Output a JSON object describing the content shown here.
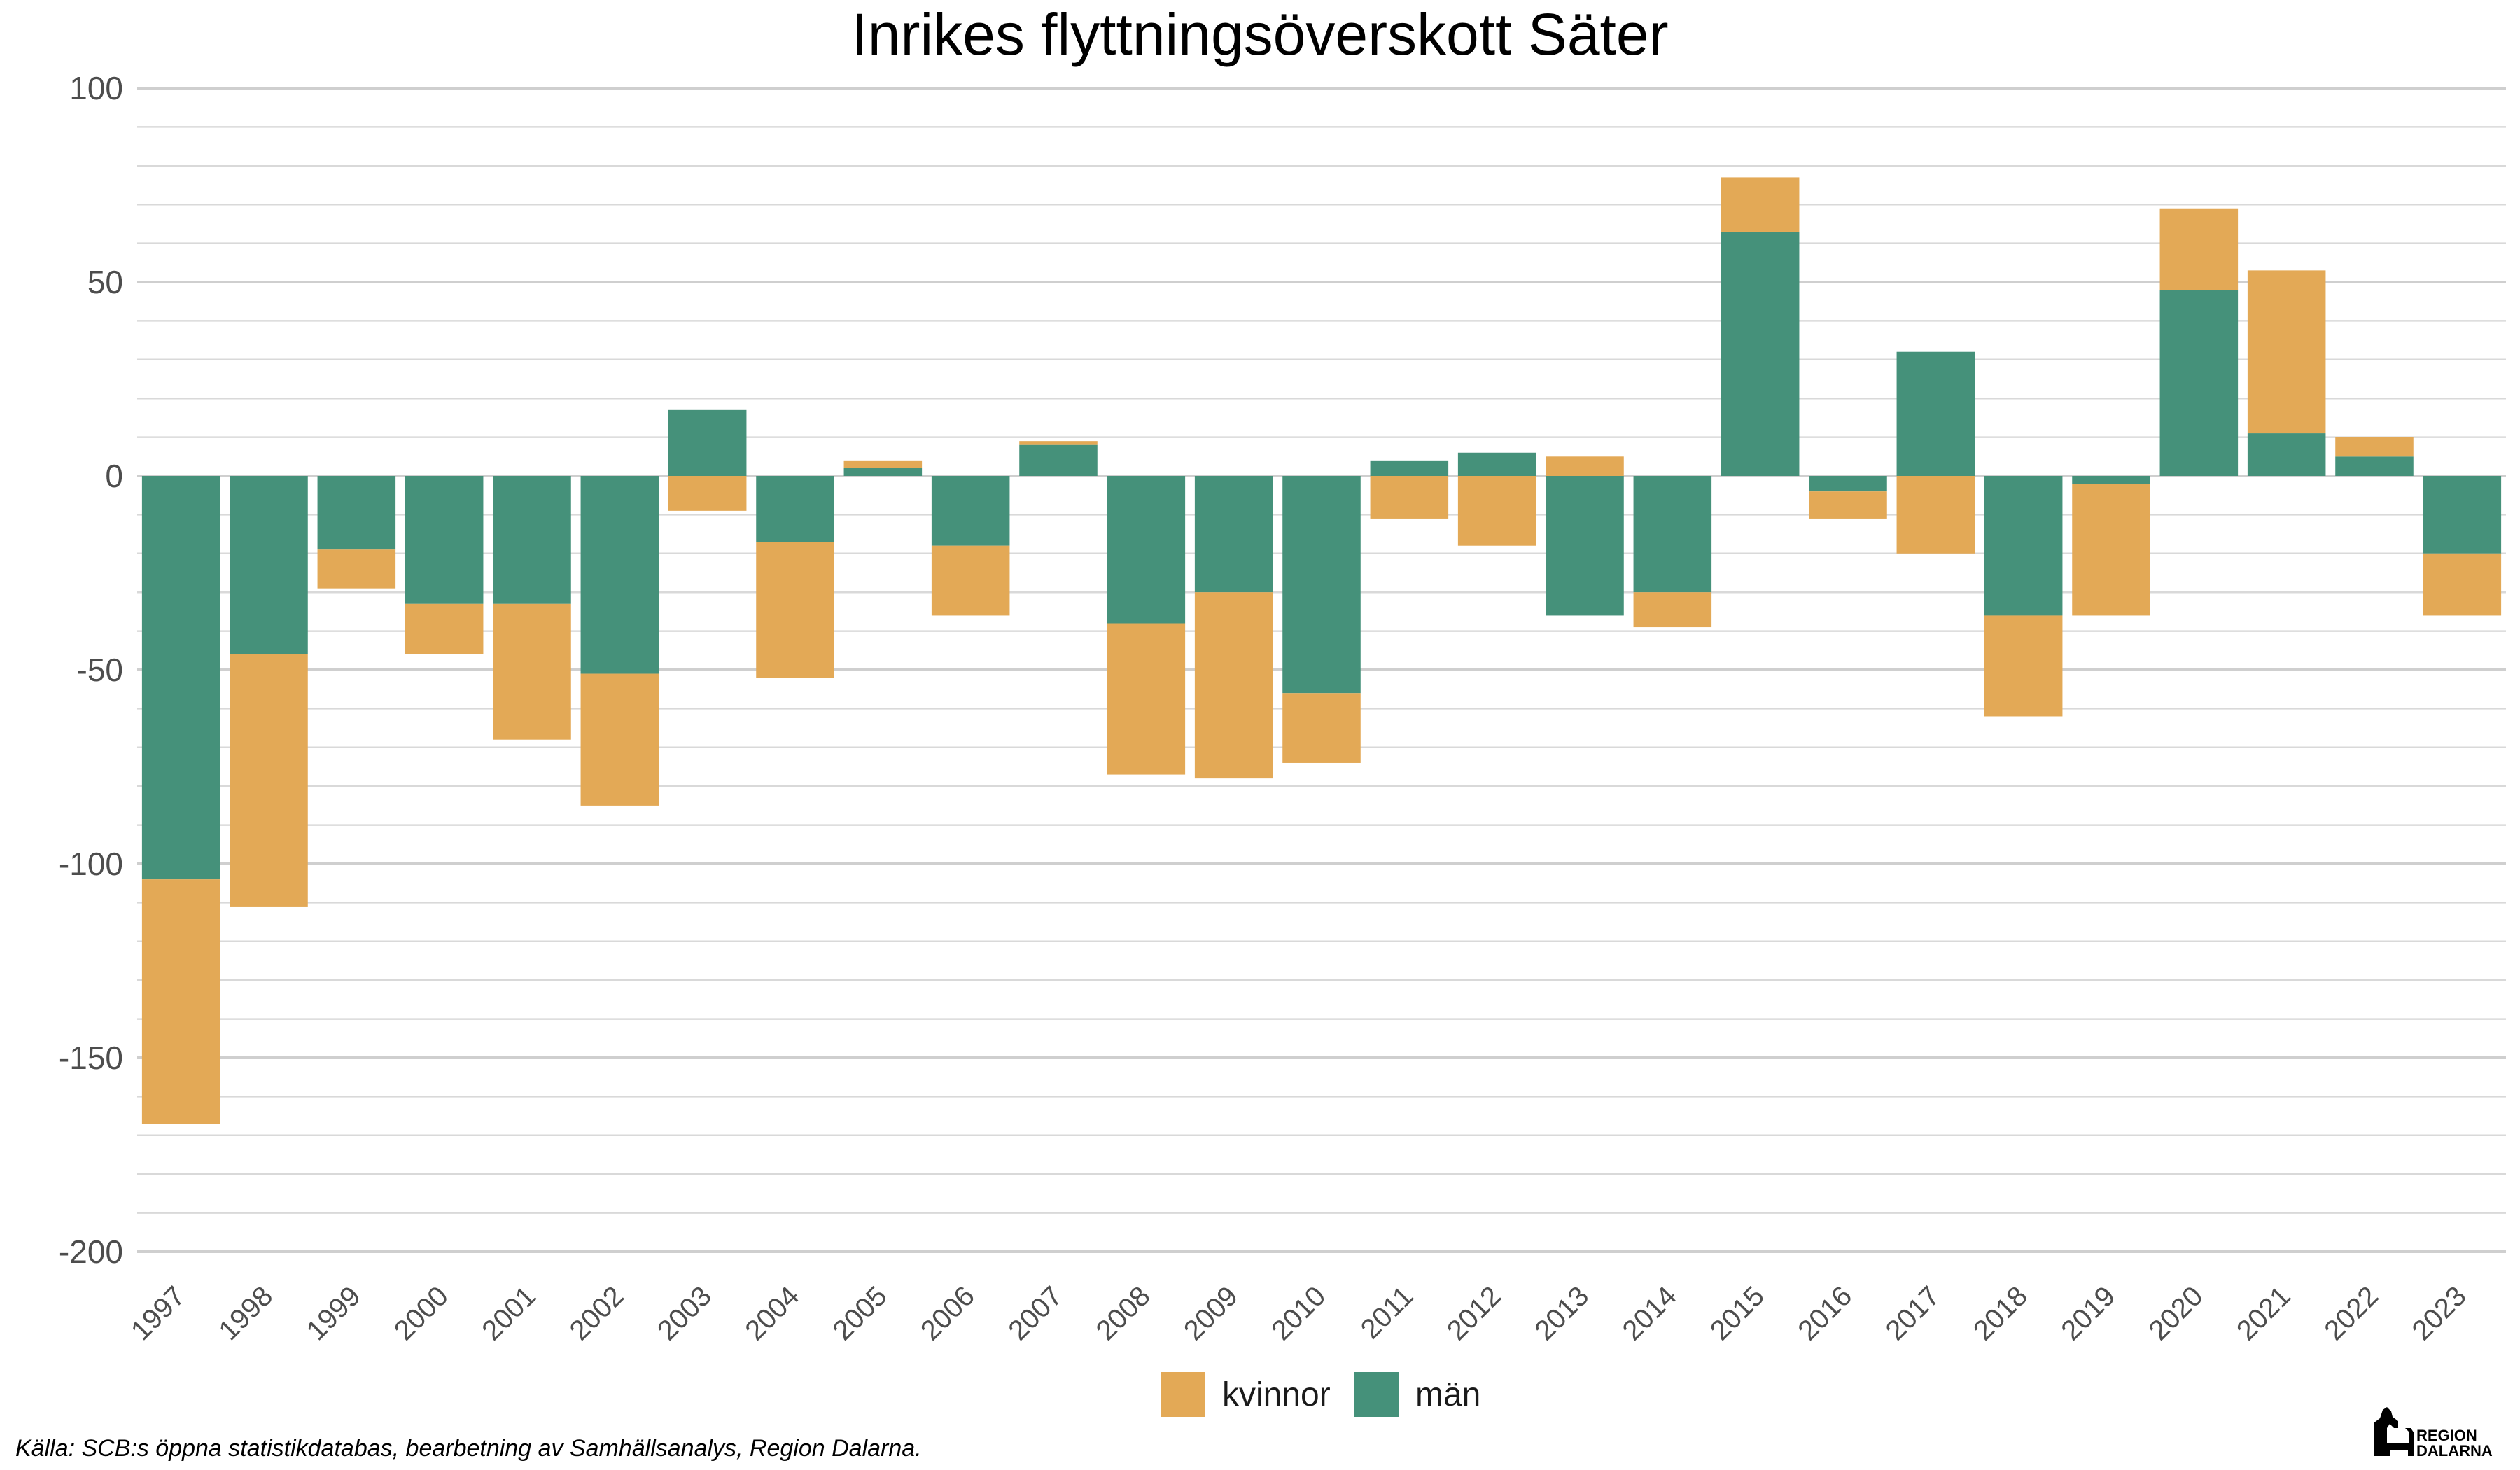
{
  "chart_data": {
    "type": "bar",
    "stacked": true,
    "title": "Inrikes flyttningsöverskott Säter",
    "xlabel": "",
    "ylabel": "",
    "categories": [
      "1997",
      "1998",
      "1999",
      "2000",
      "2001",
      "2002",
      "2003",
      "2004",
      "2005",
      "2006",
      "2007",
      "2008",
      "2009",
      "2010",
      "2011",
      "2012",
      "2013",
      "2014",
      "2015",
      "2016",
      "2017",
      "2018",
      "2019",
      "2020",
      "2021",
      "2022",
      "2023"
    ],
    "series": [
      {
        "name": "män",
        "color": "#45917A",
        "values": [
          -104,
          -46,
          -19,
          -33,
          -33,
          -51,
          17,
          -17,
          2,
          -18,
          8,
          -38,
          -30,
          -56,
          4,
          6,
          -36,
          -30,
          63,
          -4,
          32,
          -36,
          -2,
          48,
          11,
          5,
          -20
        ]
      },
      {
        "name": "kvinnor",
        "color": "#E3A956",
        "values": [
          -63,
          -65,
          -10,
          -13,
          -35,
          -34,
          -9,
          -35,
          2,
          -18,
          1,
          -39,
          -48,
          -18,
          -11,
          -18,
          5,
          -9,
          14,
          -7,
          -20,
          -26,
          -34,
          21,
          42,
          5,
          -16
        ]
      }
    ],
    "ylim": [
      -200,
      100
    ],
    "yticks": [
      100,
      50,
      0,
      -50,
      -100,
      -150,
      -200
    ],
    "ytick_labels": [
      "100",
      "50",
      "0",
      "-50",
      "-100",
      "-150",
      "-200"
    ],
    "grid": true,
    "legend": {
      "position": "bottom",
      "order": [
        "kvinnor",
        "män"
      ]
    },
    "caption": "Källa: SCB:s öppna statistikdatabas, bearbetning av Samhällsanalys, Region Dalarna.",
    "logo": {
      "line1": "REGION",
      "line2": "DALARNA"
    }
  }
}
